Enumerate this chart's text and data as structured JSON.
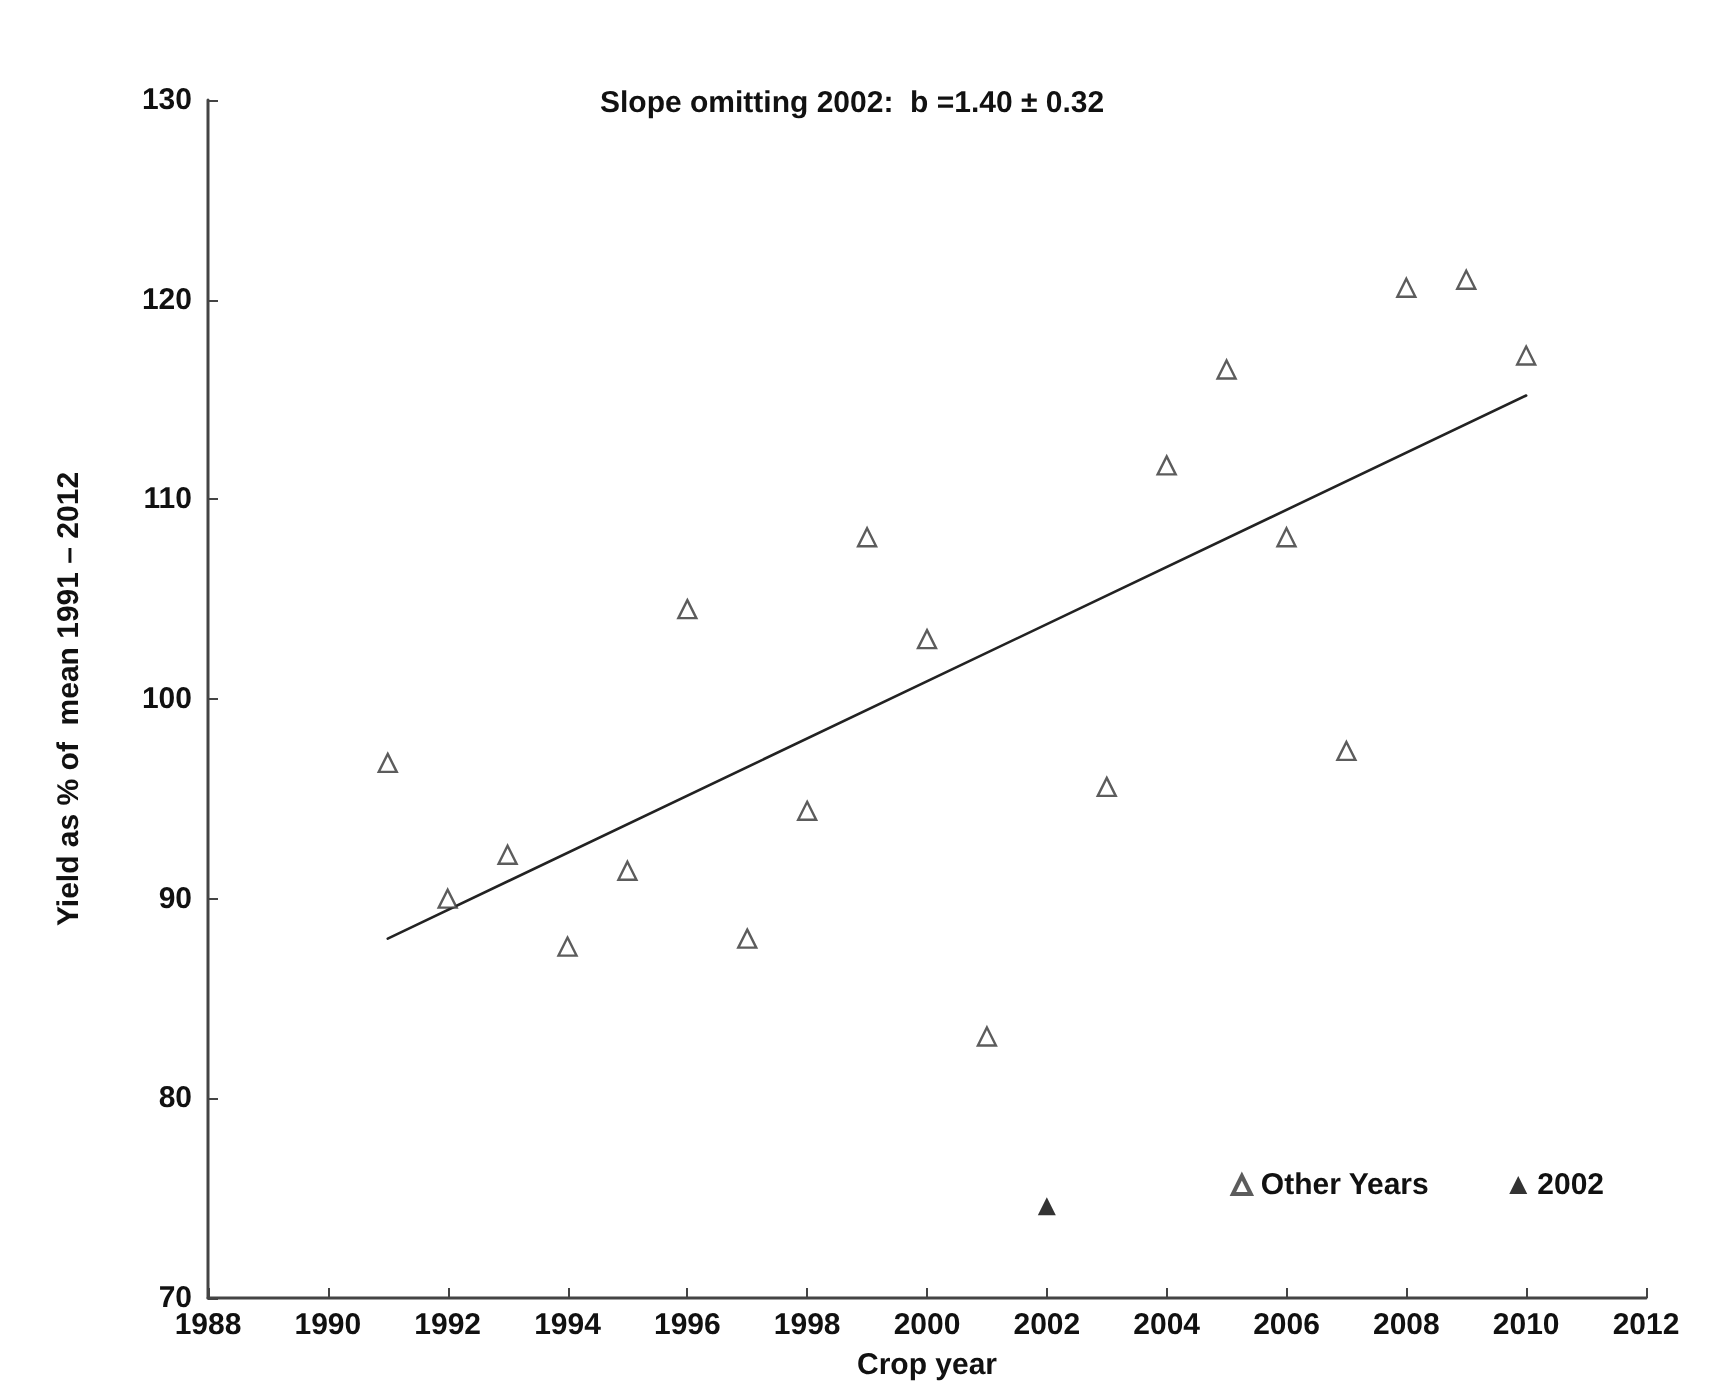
{
  "chart_data": {
    "type": "scatter",
    "xlabel": "Crop year",
    "ylabel": "Yield as % of  mean 1991 – 2012",
    "annotations": [
      "Slope omitting 2002:  b =1.40 ± 0.32"
    ],
    "xlim": [
      1988,
      2012
    ],
    "xticks": [
      1988,
      1990,
      1992,
      1994,
      1996,
      1998,
      2000,
      2002,
      2004,
      2006,
      2008,
      2010,
      2012
    ],
    "ylim": [
      70,
      130
    ],
    "yticks": [
      70,
      80,
      90,
      100,
      110,
      120,
      130
    ],
    "grid": false,
    "legend": "bottom right",
    "marker": "triangle",
    "series": [
      {
        "name": "Other Years",
        "color": "#333333",
        "x": [
          1991,
          1992,
          1993,
          1994,
          1995,
          1996,
          1997,
          1998,
          1999,
          2000,
          2001,
          2003,
          2004,
          2005,
          2006,
          2007,
          2008,
          2009,
          2010
        ],
        "values": [
          96.8,
          90.0,
          92.2,
          87.6,
          91.4,
          104.5,
          88.0,
          94.4,
          108.1,
          103.0,
          83.1,
          95.6,
          111.7,
          116.5,
          108.1,
          97.4,
          120.6,
          121.0,
          117.2
        ]
      },
      {
        "name": "2002",
        "color": "#000000",
        "x": [
          2002
        ],
        "values": [
          74.6
        ]
      },
      {
        "type": "line",
        "color": "#222222",
        "x": [
          1991,
          2010
        ],
        "values": [
          88.0,
          115.2
        ],
        "marker": "none",
        "line_style": "solid"
      }
    ]
  }
}
